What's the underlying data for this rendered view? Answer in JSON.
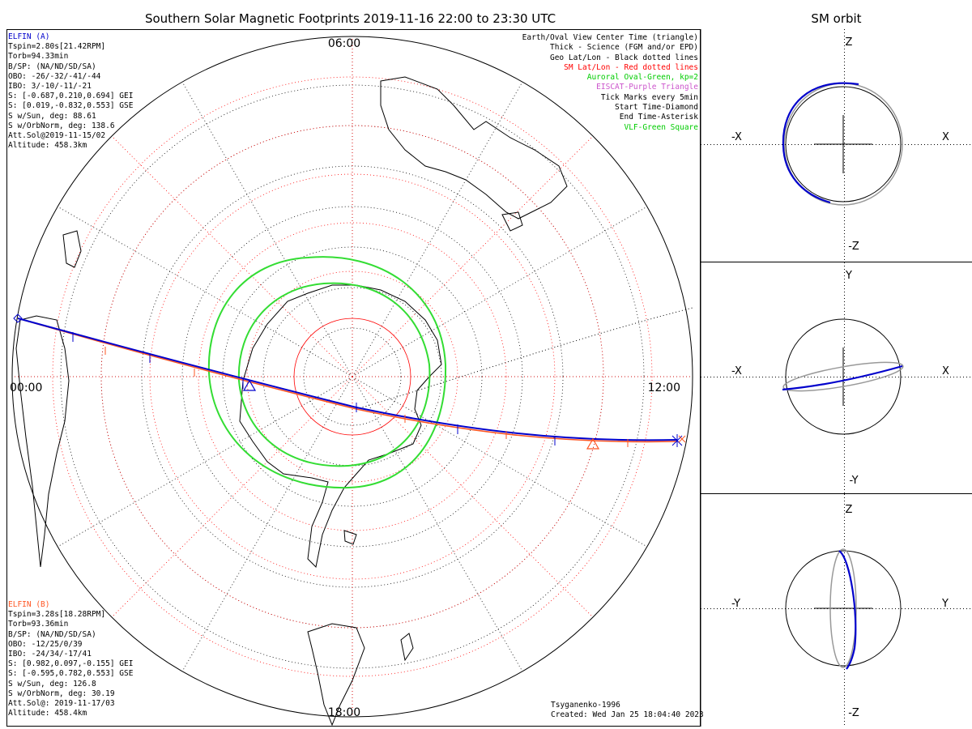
{
  "title": "Southern Solar Magnetic Footprints 2019-11-16 22:00 to 23:30 UTC",
  "sm_title": "SM orbit",
  "time_labels": {
    "top": "06:00",
    "left": "00:00",
    "right": "12:00",
    "bottom": "18:00"
  },
  "elfin_a": {
    "name": "ELFIN (A)",
    "color": "#0000cc",
    "lines": [
      "Tspin=2.80s[21.42RPM]",
      "Torb=94.33min",
      "B/SP: (NA/ND/SD/SA)",
      "OBO: -26/-32/-41/-44",
      "IBO: 3/-10/-11/-21",
      "S: [-0.687,0.210,0.694] GEI",
      "S: [0.019,-0.832,0.553] GSE",
      "S w/Sun, deg: 88.61",
      "S w/OrbNorm, deg: 138.6",
      "Att.Sol@2019-11-15/02",
      "Altitude: 458.3km"
    ]
  },
  "elfin_b": {
    "name": "ELFIN (B)",
    "color": "#ff5522",
    "lines": [
      "Tspin=3.28s[18.28RPM]",
      "Torb=93.36min",
      "B/SP: (NA/ND/SD/SA)",
      "OBO: -12/25/0/39",
      "IBO: -24/34/-17/41",
      "S: [0.982,0.097,-0.155] GEI",
      "S: [-0.595,0.782,0.553] GSE",
      "S w/Sun, deg: 126.8",
      "S w/OrbNorm, deg: 30.19",
      "Att.Sol@: 2019-11-17/03",
      "Altitude: 458.4km"
    ]
  },
  "legend": [
    {
      "text": "Earth/Oval View Center Time (triangle)",
      "color": "#000000"
    },
    {
      "text": "Thick - Science (FGM and/or EPD)",
      "color": "#000000"
    },
    {
      "text": "Geo Lat/Lon - Black dotted lines",
      "color": "#000000"
    },
    {
      "text": "SM Lat/Lon - Red dotted lines",
      "color": "#ff0000"
    },
    {
      "text": "Auroral Oval-Green, kp=2",
      "color": "#00cc00"
    },
    {
      "text": "EISCAT-Purple Triangle",
      "color": "#cc55cc"
    },
    {
      "text": "Tick Marks every 5min",
      "color": "#000000"
    },
    {
      "text": "Start Time-Diamond",
      "color": "#000000"
    },
    {
      "text": "End Time-Asterisk",
      "color": "#000000"
    },
    {
      "text": "VLF-Green Square",
      "color": "#00cc00"
    }
  ],
  "footer": {
    "model": "Tsyganenko-1996",
    "created": "Created: Wed Jan 25 18:04:40 2023"
  },
  "sm_panels": [
    {
      "top": "Z",
      "bottom": "-Z",
      "left": "-X",
      "right": "X"
    },
    {
      "top": "Y",
      "bottom": "-Y",
      "left": "-X",
      "right": "X"
    },
    {
      "top": "Z",
      "bottom": "-Z",
      "left": "-Y",
      "right": "Y"
    }
  ],
  "colors": {
    "track_a": "#0000cc",
    "track_b": "#ff5522",
    "oval": "#33dd33",
    "sm_grid": "#ff0000",
    "orbit_gray": "#999999"
  }
}
